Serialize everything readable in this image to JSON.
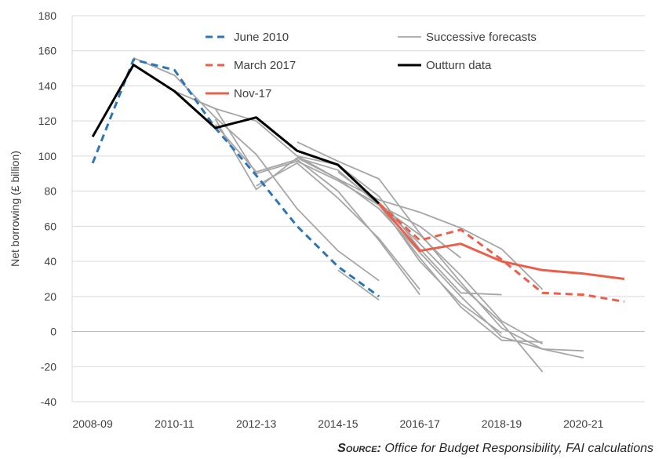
{
  "chart_data": {
    "type": "line",
    "ylabel": "Net borrowing (£ billion)",
    "ylim": [
      -40,
      180
    ],
    "yticks": [
      -40,
      -20,
      0,
      20,
      40,
      60,
      80,
      100,
      120,
      140,
      160,
      180
    ],
    "x_tick_labels": [
      "2008-09",
      "2010-11",
      "2012-13",
      "2014-15",
      "2016-17",
      "2018-19",
      "2020-21"
    ],
    "x_categories": [
      "2008-09",
      "2009-10",
      "2010-11",
      "2011-12",
      "2012-13",
      "2013-14",
      "2014-15",
      "2015-16",
      "2016-17",
      "2017-18",
      "2018-19",
      "2019-20",
      "2020-21",
      "2021-22"
    ],
    "grid": "horizontal",
    "legend_placement": "top",
    "legend": [
      {
        "label": "June 2010",
        "series_id": "june2010"
      },
      {
        "label": "Successive forecasts",
        "series_id": "successive"
      },
      {
        "label": "March 2017",
        "series_id": "march2017"
      },
      {
        "label": "Outturn data",
        "series_id": "outturn"
      },
      {
        "label": "Nov-17",
        "series_id": "nov17"
      }
    ],
    "series": [
      {
        "id": "june2010",
        "name": "June 2010",
        "color": "#2e75b6",
        "style": "dashed",
        "width": 3,
        "points": [
          [
            "2008-09",
            96
          ],
          [
            "2009-10",
            155
          ],
          [
            "2010-11",
            149
          ],
          [
            "2011-12",
            116
          ],
          [
            "2012-13",
            89
          ],
          [
            "2013-14",
            60
          ],
          [
            "2014-15",
            37
          ],
          [
            "2015-16",
            20
          ]
        ]
      },
      {
        "id": "successive",
        "name": "Successive forecasts",
        "color": "#a6a6a6",
        "style": "solid",
        "width": 1.8,
        "lines": [
          [
            [
              "2009-10",
              156
            ],
            [
              "2010-11",
              146
            ],
            [
              "2011-12",
              122
            ],
            [
              "2012-13",
              101
            ],
            [
              "2013-14",
              70
            ],
            [
              "2014-15",
              46
            ],
            [
              "2015-16",
              29
            ]
          ],
          [
            [
              "2010-11",
              137
            ],
            [
              "2011-12",
              127
            ],
            [
              "2012-13",
              120
            ],
            [
              "2013-14",
              100
            ],
            [
              "2014-15",
              87
            ],
            [
              "2015-16",
              75
            ],
            [
              "2016-17",
              68
            ],
            [
              "2017-18",
              59
            ],
            [
              "2018-19",
              47
            ],
            [
              "2019-20",
              24
            ]
          ],
          [
            [
              "2010-11",
              137
            ],
            [
              "2011-12",
              127
            ],
            [
              "2012-13",
              90
            ],
            [
              "2013-14",
              97
            ],
            [
              "2014-15",
              86
            ],
            [
              "2015-16",
              72
            ],
            [
              "2016-17",
              55
            ],
            [
              "2017-18",
              32
            ],
            [
              "2018-19",
              6
            ],
            [
              "2019-20",
              -7
            ]
          ],
          [
            [
              "2011-12",
              121
            ],
            [
              "2012-13",
              81
            ],
            [
              "2013-14",
              99
            ],
            [
              "2014-15",
              87
            ],
            [
              "2015-16",
              70
            ],
            [
              "2016-17",
              45
            ],
            [
              "2017-18",
              20
            ],
            [
              "2018-19",
              -3
            ],
            [
              "2019-20",
              -10
            ],
            [
              "2020-21",
              -15
            ]
          ],
          [
            [
              "2011-12",
              118
            ],
            [
              "2012-13",
              91
            ],
            [
              "2013-14",
              98
            ],
            [
              "2014-15",
              80
            ],
            [
              "2015-16",
              52
            ],
            [
              "2016-17",
              21
            ]
          ],
          [
            [
              "2012-13",
              83
            ],
            [
              "2013-14",
              96
            ],
            [
              "2014-15",
              76
            ],
            [
              "2015-16",
              53
            ],
            [
              "2016-17",
              24
            ]
          ],
          [
            [
              "2013-14",
              108
            ],
            [
              "2014-15",
              97
            ],
            [
              "2015-16",
              87
            ],
            [
              "2016-17",
              56
            ],
            [
              "2017-18",
              28
            ],
            [
              "2018-19",
              2
            ],
            [
              "2019-20",
              -10
            ],
            [
              "2020-21",
              -11
            ]
          ],
          [
            [
              "2013-14",
              99
            ],
            [
              "2014-15",
              92
            ],
            [
              "2015-16",
              72
            ],
            [
              "2016-17",
              42
            ],
            [
              "2017-18",
              14
            ],
            [
              "2018-19",
              -5
            ],
            [
              "2019-20",
              -6
            ]
          ],
          [
            [
              "2014-15",
              91
            ],
            [
              "2015-16",
              73
            ],
            [
              "2016-17",
              50
            ],
            [
              "2017-18",
              26
            ],
            [
              "2018-19",
              5
            ],
            [
              "2019-20",
              -23
            ]
          ],
          [
            [
              "2015-16",
              72
            ],
            [
              "2016-17",
              60
            ],
            [
              "2017-18",
              42
            ]
          ],
          [
            [
              "2013-14",
              100
            ],
            [
              "2014-15",
              95
            ],
            [
              "2015-16",
              77
            ],
            [
              "2016-17",
              47
            ],
            [
              "2017-18",
              22
            ],
            [
              "2018-19",
              21
            ]
          ],
          [
            [
              "2014-15",
              35
            ],
            [
              "2015-16",
              18
            ]
          ],
          [
            [
              "2015-16",
              73
            ],
            [
              "2016-17",
              40
            ],
            [
              "2017-18",
              16
            ],
            [
              "2018-19",
              -1
            ]
          ]
        ]
      },
      {
        "id": "march2017",
        "name": "March 2017",
        "color": "#e8604c",
        "style": "dashed",
        "width": 3,
        "points": [
          [
            "2015-16",
            73
          ],
          [
            "2016-17",
            52
          ],
          [
            "2017-18",
            58
          ],
          [
            "2018-19",
            41
          ],
          [
            "2019-20",
            22
          ],
          [
            "2020-21",
            21
          ],
          [
            "2021-22",
            17
          ]
        ]
      },
      {
        "id": "outturn",
        "name": "Outturn data",
        "color": "#000000",
        "style": "solid",
        "width": 3,
        "points": [
          [
            "2008-09",
            111
          ],
          [
            "2009-10",
            152
          ],
          [
            "2010-11",
            137
          ],
          [
            "2011-12",
            116
          ],
          [
            "2012-13",
            122
          ],
          [
            "2013-14",
            103
          ],
          [
            "2014-15",
            95
          ],
          [
            "2015-16",
            73
          ]
        ]
      },
      {
        "id": "nov17",
        "name": "Nov-17",
        "color": "#e8604c",
        "style": "solid",
        "width": 3,
        "points": [
          [
            "2015-16",
            73
          ],
          [
            "2016-17",
            46
          ],
          [
            "2017-18",
            50
          ],
          [
            "2018-19",
            40
          ],
          [
            "2019-20",
            35
          ],
          [
            "2020-21",
            33
          ],
          [
            "2021-22",
            30
          ]
        ]
      }
    ]
  },
  "source": {
    "label": "Source:",
    "text": " Office for Budget Responsibility, FAI calculations"
  }
}
